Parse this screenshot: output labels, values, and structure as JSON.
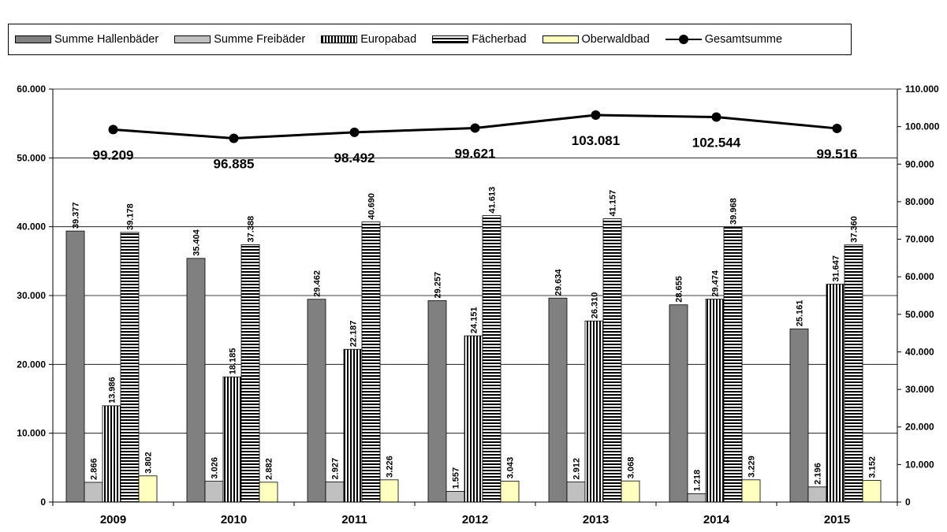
{
  "chart_data": {
    "type": "bar",
    "categories": [
      "2009",
      "2010",
      "2011",
      "2012",
      "2013",
      "2014",
      "2015"
    ],
    "series": [
      {
        "name": "Summe Hallenbäder",
        "axis": "left",
        "color": "#808080",
        "values": [
          39.377,
          35.404,
          29.462,
          29.257,
          29.634,
          28.655,
          25.161
        ],
        "labels": [
          "39.377",
          "35.404",
          "29.462",
          "29.257",
          "29.634",
          "28.655",
          "25.161"
        ]
      },
      {
        "name": "Summe Freibäder",
        "axis": "left",
        "color": "#c0c0c0",
        "values": [
          2.866,
          3.026,
          2.927,
          1.557,
          2.912,
          1.218,
          2.196
        ],
        "labels": [
          "2.866",
          "3.026",
          "2.927",
          "1.557",
          "2.912",
          "1.218",
          "2.196"
        ]
      },
      {
        "name": "Europabad",
        "axis": "left",
        "pattern": "vertical-stripes",
        "values": [
          13.986,
          18.185,
          22.187,
          24.151,
          26.31,
          29.474,
          31.647
        ],
        "labels": [
          "13.986",
          "18.185",
          "22.187",
          "24.151",
          "26.310",
          "29.474",
          "31.647"
        ]
      },
      {
        "name": "Fächerbad",
        "axis": "left",
        "pattern": "horizontal-stripes",
        "values": [
          39.178,
          37.388,
          40.69,
          41.613,
          41.157,
          39.968,
          37.36
        ],
        "labels": [
          "39.178",
          "37.388",
          "40.690",
          "41.613",
          "41.157",
          "39.968",
          "37.360"
        ]
      },
      {
        "name": "Oberwaldbad",
        "axis": "left",
        "color": "#ffffc0",
        "values": [
          3.802,
          2.882,
          3.226,
          3.043,
          3.068,
          3.229,
          3.152
        ],
        "labels": [
          "3.802",
          "2.882",
          "3.226",
          "3.043",
          "3.068",
          "3.229",
          "3.152"
        ]
      },
      {
        "name": "Gesamtsumme",
        "axis": "right",
        "type": "line",
        "color": "#000000",
        "values": [
          99.209,
          96.885,
          98.492,
          99.621,
          103.081,
          102.544,
          99.516
        ],
        "labels": [
          "99.209",
          "96.885",
          "98.492",
          "99.621",
          "103.081",
          "102.544",
          "99.516"
        ]
      }
    ],
    "y_left": {
      "ylim": [
        0,
        60
      ],
      "ticks": [
        0,
        10,
        20,
        30,
        40,
        50,
        60
      ],
      "tick_labels": [
        "0",
        "10.000",
        "20.000",
        "30.000",
        "40.000",
        "50.000",
        "60.000"
      ]
    },
    "y_right": {
      "ylim": [
        0,
        110
      ],
      "ticks": [
        0,
        10,
        20,
        30,
        40,
        50,
        60,
        70,
        80,
        90,
        100,
        110
      ],
      "tick_labels": [
        "0",
        "10.000",
        "20.000",
        "30.000",
        "40.000",
        "50.000",
        "60.000",
        "70.000",
        "80.000",
        "90.000",
        "100.000",
        "110.000"
      ]
    },
    "grid": true,
    "legend": "top"
  }
}
